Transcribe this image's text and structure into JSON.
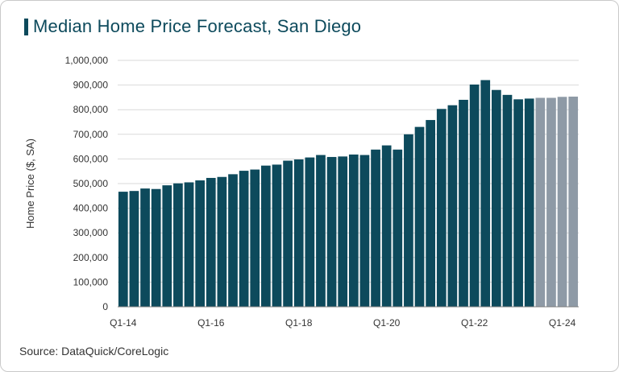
{
  "chart_data": {
    "type": "bar",
    "title": "Median Home Price Forecast, San Diego",
    "ylabel": "Home Price ($, SA)",
    "source": "Source: DataQuick/CoreLogic",
    "ylim": [
      0,
      1000000
    ],
    "yticks": [
      "0",
      "100,000",
      "200,000",
      "300,000",
      "400,000",
      "500,000",
      "600,000",
      "700,000",
      "800,000",
      "900,000",
      "1,000,000"
    ],
    "xtick_labels": [
      "Q1-14",
      "Q1-16",
      "Q1-18",
      "Q1-20",
      "Q1-22",
      "Q1-24"
    ],
    "grid": true,
    "colors": {
      "actual": "#0d4a5c",
      "forecast": "#8e9aa6",
      "grid": "#d9d9d9",
      "axis": "#7f7f7f"
    },
    "categories": [
      "Q1-14",
      "Q2-14",
      "Q3-14",
      "Q4-14",
      "Q1-15",
      "Q2-15",
      "Q3-15",
      "Q4-15",
      "Q1-16",
      "Q2-16",
      "Q3-16",
      "Q4-16",
      "Q1-17",
      "Q2-17",
      "Q3-17",
      "Q4-17",
      "Q1-18",
      "Q2-18",
      "Q3-18",
      "Q4-18",
      "Q1-19",
      "Q2-19",
      "Q3-19",
      "Q4-19",
      "Q1-20",
      "Q2-20",
      "Q3-20",
      "Q4-20",
      "Q1-21",
      "Q2-21",
      "Q3-21",
      "Q4-21",
      "Q1-22",
      "Q2-22",
      "Q3-22",
      "Q4-22",
      "Q1-23",
      "Q2-23",
      "Q3-23",
      "Q4-23",
      "Q1-24",
      "Q2-24"
    ],
    "values": [
      467000,
      470000,
      480000,
      478000,
      493000,
      501000,
      505000,
      513000,
      523000,
      527000,
      538000,
      552000,
      557000,
      573000,
      577000,
      593000,
      598000,
      606000,
      616000,
      608000,
      610000,
      618000,
      616000,
      638000,
      655000,
      638000,
      700000,
      730000,
      758000,
      803000,
      818000,
      840000,
      902000,
      920000,
      880000,
      860000,
      842000,
      845000,
      848000,
      848000,
      852000,
      853000
    ],
    "forecast_start_index": 38
  }
}
